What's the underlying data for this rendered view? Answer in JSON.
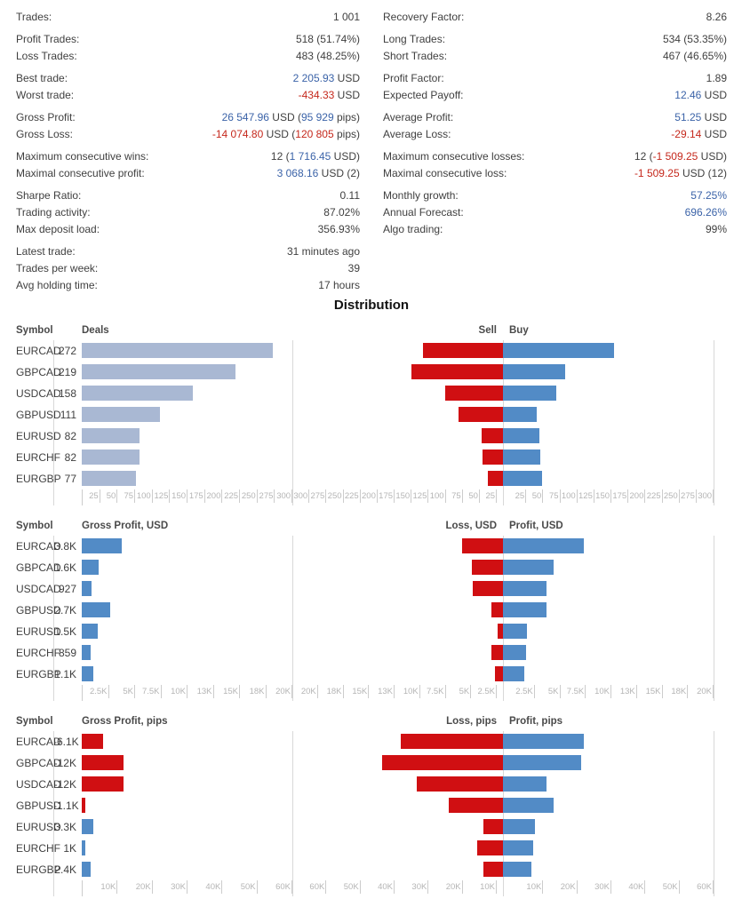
{
  "colors": {
    "accent_blue": "#3b63a8",
    "accent_red": "#c5281c",
    "bar_blue": "#528bc6",
    "bar_red": "#d00f12",
    "bar_light": "#a9b8d3",
    "axis_text": "#b5b5b5",
    "tick": "#cccccc",
    "divider": "#d8d8d8",
    "label_text": "#3f3f3f",
    "header_text": "#4a4a4a",
    "title_text": "#111111"
  },
  "stats": {
    "left": [
      {
        "label": "Trades:",
        "group": 0,
        "segments": [
          {
            "t": "1 001",
            "c": "default"
          }
        ]
      },
      {
        "label": "Profit Trades:",
        "group": 1,
        "segments": [
          {
            "t": "518 (51.74%)",
            "c": "default"
          }
        ]
      },
      {
        "label": "Loss Trades:",
        "group": 1,
        "segments": [
          {
            "t": "483 (48.25%)",
            "c": "default"
          }
        ]
      },
      {
        "label": "Best trade:",
        "group": 2,
        "segments": [
          {
            "t": "2 205.93",
            "c": "blue"
          },
          {
            "t": " USD",
            "c": "default"
          }
        ]
      },
      {
        "label": "Worst trade:",
        "group": 2,
        "segments": [
          {
            "t": "-434.33",
            "c": "red"
          },
          {
            "t": " USD",
            "c": "default"
          }
        ]
      },
      {
        "label": "Gross Profit:",
        "group": 3,
        "segments": [
          {
            "t": "26 547.96",
            "c": "blue"
          },
          {
            "t": " USD (",
            "c": "default"
          },
          {
            "t": "95 929",
            "c": "blue"
          },
          {
            "t": " pips)",
            "c": "default"
          }
        ]
      },
      {
        "label": "Gross Loss:",
        "group": 3,
        "segments": [
          {
            "t": "-14 074.80",
            "c": "red"
          },
          {
            "t": " USD (",
            "c": "default"
          },
          {
            "t": "120 805",
            "c": "red"
          },
          {
            "t": " pips)",
            "c": "default"
          }
        ]
      },
      {
        "label": "Maximum consecutive wins:",
        "group": 4,
        "segments": [
          {
            "t": "12 (",
            "c": "default"
          },
          {
            "t": "1 716.45",
            "c": "blue"
          },
          {
            "t": " USD)",
            "c": "default"
          }
        ]
      },
      {
        "label": "Maximal consecutive profit:",
        "group": 4,
        "segments": [
          {
            "t": "3 068.16",
            "c": "blue"
          },
          {
            "t": " USD (2)",
            "c": "default"
          }
        ]
      },
      {
        "label": "Sharpe Ratio:",
        "group": 5,
        "segments": [
          {
            "t": "0.11",
            "c": "default"
          }
        ]
      },
      {
        "label": "Trading activity:",
        "group": 5,
        "segments": [
          {
            "t": "87.02%",
            "c": "default"
          }
        ]
      },
      {
        "label": "Max deposit load:",
        "group": 5,
        "segments": [
          {
            "t": "356.93%",
            "c": "default"
          }
        ]
      },
      {
        "label": "Latest trade:",
        "group": 6,
        "segments": [
          {
            "t": "31 minutes ago",
            "c": "default"
          }
        ]
      },
      {
        "label": "Trades per week:",
        "group": 6,
        "segments": [
          {
            "t": "39",
            "c": "default"
          }
        ]
      },
      {
        "label": "Avg holding time:",
        "group": 6,
        "segments": [
          {
            "t": "17 hours",
            "c": "default"
          }
        ]
      }
    ],
    "right": [
      {
        "label": "Recovery Factor:",
        "group": 0,
        "segments": [
          {
            "t": "8.26",
            "c": "default"
          }
        ]
      },
      {
        "label": "Long Trades:",
        "group": 1,
        "segments": [
          {
            "t": "534 (53.35%)",
            "c": "default"
          }
        ]
      },
      {
        "label": "Short Trades:",
        "group": 1,
        "segments": [
          {
            "t": "467 (46.65%)",
            "c": "default"
          }
        ]
      },
      {
        "label": "Profit Factor:",
        "group": 2,
        "segments": [
          {
            "t": "1.89",
            "c": "default"
          }
        ]
      },
      {
        "label": "Expected Payoff:",
        "group": 2,
        "segments": [
          {
            "t": "12.46",
            "c": "blue"
          },
          {
            "t": " USD",
            "c": "default"
          }
        ]
      },
      {
        "label": "Average Profit:",
        "group": 3,
        "segments": [
          {
            "t": "51.25",
            "c": "blue"
          },
          {
            "t": " USD",
            "c": "default"
          }
        ]
      },
      {
        "label": "Average Loss:",
        "group": 3,
        "segments": [
          {
            "t": "-29.14",
            "c": "red"
          },
          {
            "t": " USD",
            "c": "default"
          }
        ]
      },
      {
        "label": "Maximum consecutive losses:",
        "group": 4,
        "segments": [
          {
            "t": "12 (",
            "c": "default"
          },
          {
            "t": "-1 509.25",
            "c": "red"
          },
          {
            "t": " USD)",
            "c": "default"
          }
        ]
      },
      {
        "label": "Maximal consecutive loss:",
        "group": 4,
        "segments": [
          {
            "t": "-1 509.25",
            "c": "red"
          },
          {
            "t": " USD (12)",
            "c": "default"
          }
        ]
      },
      {
        "label": "Monthly growth:",
        "group": 5,
        "segments": [
          {
            "t": "57.25%",
            "c": "blue"
          }
        ]
      },
      {
        "label": "Annual Forecast:",
        "group": 5,
        "segments": [
          {
            "t": "696.26%",
            "c": "blue"
          }
        ]
      },
      {
        "label": "Algo trading:",
        "group": 5,
        "segments": [
          {
            "t": "99%",
            "c": "default"
          }
        ]
      }
    ]
  },
  "distribution_title": "Distribution",
  "chart_data": [
    {
      "type": "bar",
      "symbol_header": "Symbol",
      "left_title": "Deals",
      "right_neg_title": "Sell",
      "right_pos_title": "Buy",
      "left_bar_mode": "neutral",
      "axis_max": 300,
      "axis_left": [
        "25",
        "50",
        "75",
        "100",
        "125",
        "150",
        "175",
        "200",
        "225",
        "250",
        "275",
        "300"
      ],
      "axis_mid": [
        "300",
        "275",
        "250",
        "225",
        "200",
        "175",
        "150",
        "125",
        "100",
        "75",
        "50",
        "25"
      ],
      "axis_right": [
        "25",
        "50",
        "75",
        "100",
        "125",
        "150",
        "175",
        "200",
        "225",
        "250",
        "275",
        "300"
      ],
      "rows": [
        {
          "symbol": "EURCAD",
          "value_label": "272",
          "value": 272,
          "neg": 114,
          "pos": 158
        },
        {
          "symbol": "GBPCAD",
          "value_label": "219",
          "value": 219,
          "neg": 130,
          "pos": 89
        },
        {
          "symbol": "USDCAD",
          "value_label": "158",
          "value": 158,
          "neg": 82,
          "pos": 76
        },
        {
          "symbol": "GBPUSD",
          "value_label": "111",
          "value": 111,
          "neg": 63,
          "pos": 48
        },
        {
          "symbol": "EURUSD",
          "value_label": "82",
          "value": 82,
          "neg": 30,
          "pos": 52
        },
        {
          "symbol": "EURCHF",
          "value_label": "82",
          "value": 82,
          "neg": 29,
          "pos": 53
        },
        {
          "symbol": "EURGBP",
          "value_label": "77",
          "value": 77,
          "neg": 21,
          "pos": 56
        }
      ]
    },
    {
      "type": "bar",
      "symbol_header": "Symbol",
      "left_title": "Gross Profit, USD",
      "right_neg_title": "Loss, USD",
      "right_pos_title": "Profit, USD",
      "left_bar_mode": "signed",
      "axis_max": 20000,
      "axis_left": [
        "2.5K",
        "5K",
        "7.5K",
        "10K",
        "13K",
        "15K",
        "18K",
        "20K"
      ],
      "axis_mid": [
        "20K",
        "18K",
        "15K",
        "13K",
        "10K",
        "7.5K",
        "5K",
        "2.5K"
      ],
      "axis_right": [
        "2.5K",
        "5K",
        "7.5K",
        "10K",
        "13K",
        "15K",
        "18K",
        "20K"
      ],
      "rows": [
        {
          "symbol": "EURCAD",
          "value_label": "3.8K",
          "value": 3800,
          "neg": 3900,
          "pos": 7700
        },
        {
          "symbol": "GBPCAD",
          "value_label": "1.6K",
          "value": 1600,
          "neg": 3000,
          "pos": 4800
        },
        {
          "symbol": "USDCAD",
          "value_label": "927",
          "value": 927,
          "neg": 2900,
          "pos": 4100
        },
        {
          "symbol": "GBPUSD",
          "value_label": "2.7K",
          "value": 2700,
          "neg": 1100,
          "pos": 4100
        },
        {
          "symbol": "EURUSD",
          "value_label": "1.5K",
          "value": 1500,
          "neg": 500,
          "pos": 2300
        },
        {
          "symbol": "EURCHF",
          "value_label": "859",
          "value": 859,
          "neg": 1100,
          "pos": 2200
        },
        {
          "symbol": "EURGBP",
          "value_label": "1.1K",
          "value": 1100,
          "neg": 800,
          "pos": 2000
        }
      ]
    },
    {
      "type": "bar",
      "symbol_header": "Symbol",
      "left_title": "Gross Profit, pips",
      "right_neg_title": "Loss, pips",
      "right_pos_title": "Profit, pips",
      "left_bar_mode": "signed",
      "axis_max": 60000,
      "axis_left": [
        "10K",
        "20K",
        "30K",
        "40K",
        "50K",
        "60K"
      ],
      "axis_mid": [
        "60K",
        "50K",
        "40K",
        "30K",
        "20K",
        "10K"
      ],
      "axis_right": [
        "10K",
        "20K",
        "30K",
        "40K",
        "50K",
        "60K"
      ],
      "rows": [
        {
          "symbol": "EURCAD",
          "value_label": "-6.1K",
          "value": -6100,
          "neg": 29100,
          "pos": 23000
        },
        {
          "symbol": "GBPCAD",
          "value_label": "-12K",
          "value": -12000,
          "neg": 34400,
          "pos": 22300
        },
        {
          "symbol": "USDCAD",
          "value_label": "-12K",
          "value": -12000,
          "neg": 24600,
          "pos": 12300
        },
        {
          "symbol": "GBPUSD",
          "value_label": "-1.1K",
          "value": -1100,
          "neg": 15400,
          "pos": 14400
        },
        {
          "symbol": "EURUSD",
          "value_label": "3.3K",
          "value": 3300,
          "neg": 5600,
          "pos": 9000
        },
        {
          "symbol": "EURCHF",
          "value_label": "1K",
          "value": 1000,
          "neg": 7400,
          "pos": 8500
        },
        {
          "symbol": "EURGBP",
          "value_label": "2.4K",
          "value": 2400,
          "neg": 5600,
          "pos": 8200
        }
      ]
    }
  ]
}
